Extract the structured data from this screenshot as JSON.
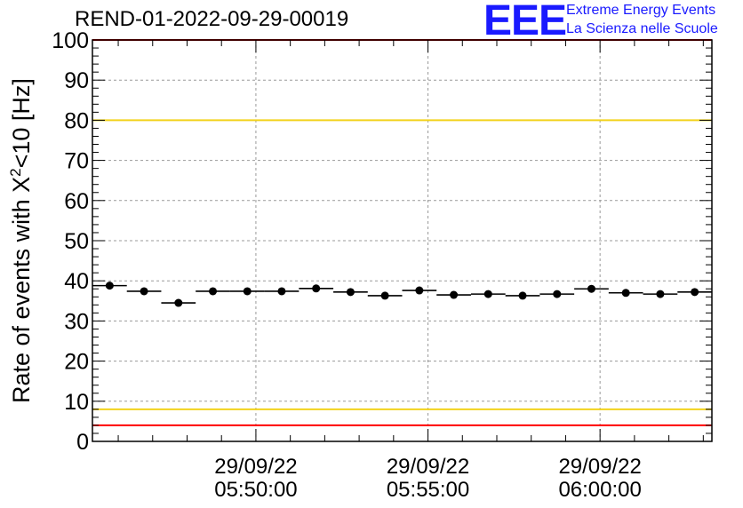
{
  "header": {
    "run_title": "REND-01-2022-09-29-00019",
    "logo_letters": "EEE",
    "logo_line1": "Extreme Energy Events",
    "logo_line2": "La Scienza nelle Scuole"
  },
  "colors": {
    "limit_red": "#ff0000",
    "limit_yellow": "#f2d21b",
    "grid": "#999999",
    "marker": "#000000",
    "logo_blue": "#1a1aff"
  },
  "chart_data": {
    "type": "scatter",
    "title": "REND-01-2022-09-29-00019",
    "xlabel": "",
    "ylabel": "Rate of events with X²<10 [Hz]",
    "ylabel_parts": {
      "base": "Rate of events with X",
      "sup": "2",
      "rest": "<10 [Hz]"
    },
    "ylim": [
      0,
      100
    ],
    "yticks": [
      0,
      10,
      20,
      30,
      40,
      50,
      60,
      70,
      80,
      90,
      100
    ],
    "x_unit": "minutes",
    "xlim": [
      "05:45:15",
      "06:03:15"
    ],
    "xticks": [
      {
        "date": "29/09/22",
        "time": "05:50:00"
      },
      {
        "date": "29/09/22",
        "time": "05:55:00"
      },
      {
        "date": "29/09/22",
        "time": "06:00:00"
      }
    ],
    "x": [
      "05:45:15",
      "05:46:15",
      "05:47:15",
      "05:48:15",
      "05:49:15",
      "05:50:15",
      "05:51:15",
      "05:52:15",
      "05:53:15",
      "05:54:15",
      "05:55:15",
      "05:56:15",
      "05:57:15",
      "05:58:15",
      "05:59:15",
      "06:00:15",
      "06:01:15",
      "06:02:15"
    ],
    "series": [
      {
        "values": [
          38.8,
          37.4,
          34.5,
          37.4,
          37.4,
          37.4,
          38.1,
          37.2,
          36.3,
          37.6,
          36.5,
          36.7,
          36.3,
          36.7,
          38.0,
          37.0,
          36.7,
          37.2
        ]
      }
    ],
    "reference_lines": [
      {
        "value": 100,
        "color": "red"
      },
      {
        "value": 80,
        "color": "yellow"
      },
      {
        "value": 8,
        "color": "yellow"
      },
      {
        "value": 4,
        "color": "red"
      }
    ],
    "grid": true,
    "legend": "none"
  }
}
